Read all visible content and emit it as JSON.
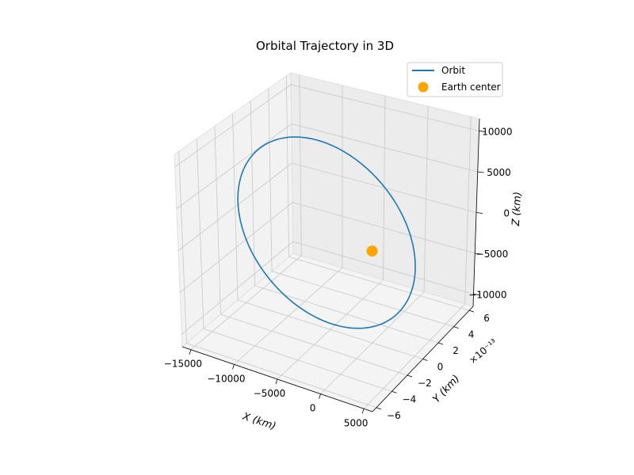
{
  "chart_data": {
    "type": "line",
    "projection": "3d",
    "title": "Orbital Trajectory in 3D",
    "xlabel": "X (km)",
    "ylabel": "Y (km)",
    "zlabel": "Z (km)",
    "xlim": [
      -16000,
      6000
    ],
    "ylim": [
      -6.5e-13,
      6.5e-13
    ],
    "zlim": [
      -11500,
      11500
    ],
    "grid": true,
    "legend_position": "top-right",
    "x_ticks": [
      {
        "value": -15000,
        "label": "−15000"
      },
      {
        "value": -10000,
        "label": "−10000"
      },
      {
        "value": -5000,
        "label": "−5000"
      },
      {
        "value": 0,
        "label": "0"
      },
      {
        "value": 5000,
        "label": "5000"
      }
    ],
    "y_ticks": [
      {
        "value": -6,
        "label": "−6"
      },
      {
        "value": -4,
        "label": "−4"
      },
      {
        "value": -2,
        "label": "−2"
      },
      {
        "value": 0,
        "label": "0"
      },
      {
        "value": 2,
        "label": "2"
      },
      {
        "value": 4,
        "label": "4"
      },
      {
        "value": 6,
        "label": "6"
      }
    ],
    "y_offset_label": "×10⁻¹³",
    "z_ticks": [
      {
        "value": -10000,
        "label": "−10000"
      },
      {
        "value": -5000,
        "label": "−5000"
      },
      {
        "value": 0,
        "label": "0"
      },
      {
        "value": 5000,
        "label": "5000"
      },
      {
        "value": 10000,
        "label": "10000"
      }
    ],
    "series": [
      {
        "name": "Orbit",
        "color": "#1f77b4",
        "orbit": {
          "x_min": -15500,
          "x_max": 5000,
          "y": 0,
          "z_min": -10500,
          "z_max": 11200
        }
      },
      {
        "name": "Earth center",
        "color": "#ffa500",
        "points": [
          {
            "x": 0,
            "y": 0,
            "z": 0
          }
        ]
      }
    ]
  }
}
